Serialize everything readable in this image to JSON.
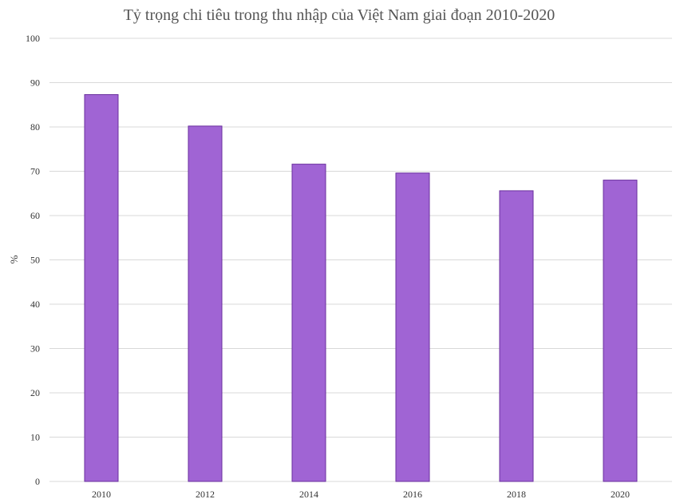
{
  "chart_data": {
    "type": "bar",
    "title": "Tỷ trọng chi tiêu trong thu nhập của Việt Nam giai đoạn 2010-2020",
    "xlabel": "",
    "ylabel": "%",
    "categories": [
      "2010",
      "2012",
      "2014",
      "2016",
      "2018",
      "2020"
    ],
    "values": [
      87.3,
      80.2,
      71.6,
      69.6,
      65.6,
      68.0
    ],
    "ylim": [
      0,
      100
    ],
    "yticks": [
      "0",
      "10",
      "20",
      "30",
      "40",
      "50",
      "60",
      "70",
      "80",
      "90",
      "100"
    ],
    "grid": true,
    "legend": "none",
    "bar_color": "#a064d4"
  }
}
